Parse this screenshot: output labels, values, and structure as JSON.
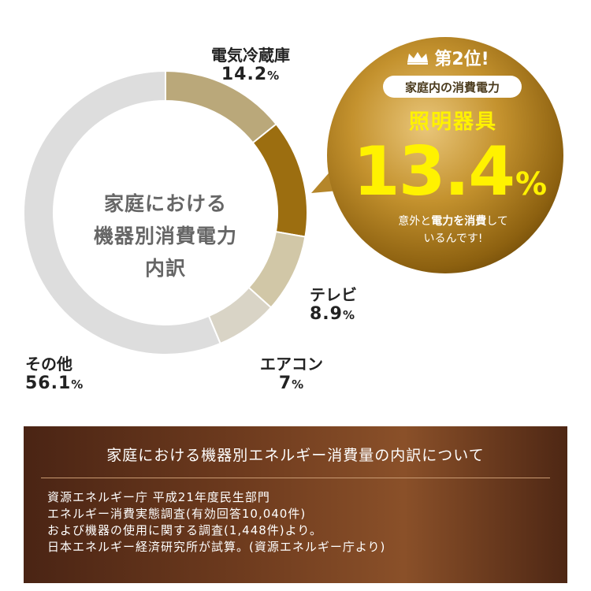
{
  "chart_data": {
    "type": "pie",
    "style": "donut",
    "center_label_lines": [
      "家庭における",
      "機器別消費電力",
      "内訳"
    ],
    "categories": [
      "電気冷蔵庫",
      "照明器具",
      "テレビ",
      "エアコン",
      "その他"
    ],
    "values": [
      14.2,
      13.4,
      8.9,
      7,
      56.1
    ],
    "unit": "%",
    "colors": [
      "#baa87a",
      "#9c6e10",
      "#d1c7a7",
      "#d9d4c6",
      "#dddddd"
    ],
    "labels": [
      {
        "name": "電気冷蔵庫",
        "value": "14.2",
        "unit": "%"
      },
      {
        "name": "テレビ",
        "value": "8.9",
        "unit": "%"
      },
      {
        "name": "エアコン",
        "value": "7",
        "unit": "%"
      },
      {
        "name": "その他",
        "value": "56.1",
        "unit": "%"
      }
    ]
  },
  "callout": {
    "rank_label": "第2位!",
    "subtitle": "家庭内の消費電力",
    "item_name": "照明器具",
    "value": "13.4",
    "unit": "%",
    "note_part1": "意外と",
    "note_bold": "電力を消費",
    "note_part2": "して",
    "note_line2": "いるんです!"
  },
  "info": {
    "title": "家庭における機器別エネルギー消費量の内訳について",
    "lines": [
      "資源エネルギー庁 平成21年度民生部門",
      "エネルギー消費実態調査(有効回答10,040件)",
      "および機器の使用に関する調査(1,448件)より。",
      "日本エネルギー経済研究所が試算。(資源エネルギー庁より)"
    ]
  }
}
